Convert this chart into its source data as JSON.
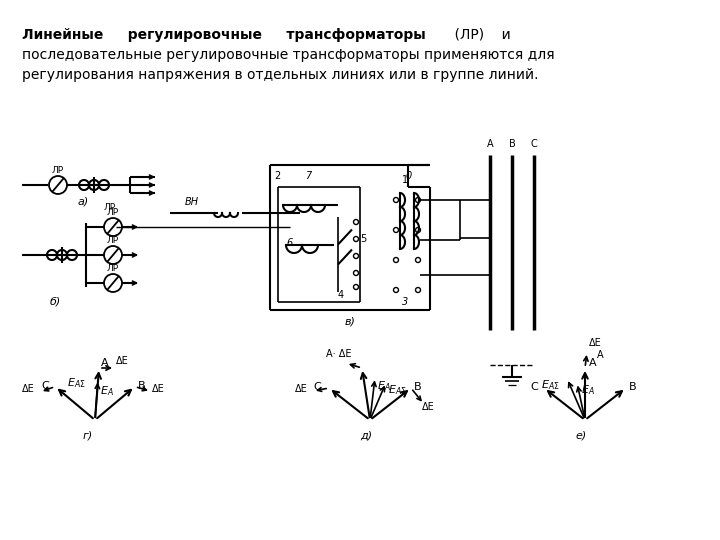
{
  "bg_color": "#ffffff",
  "line_color": "#000000",
  "text_line1_bold": "Линейные     регулировочные     трансформаторы",
  "text_line1_normal": "    (ЛР)    и",
  "text_line2": "последовательные регулировочные трансформаторы применяются для",
  "text_line3": "регулирования напряжения в отдельных линиях или в группе линий.",
  "fontsize": 10
}
